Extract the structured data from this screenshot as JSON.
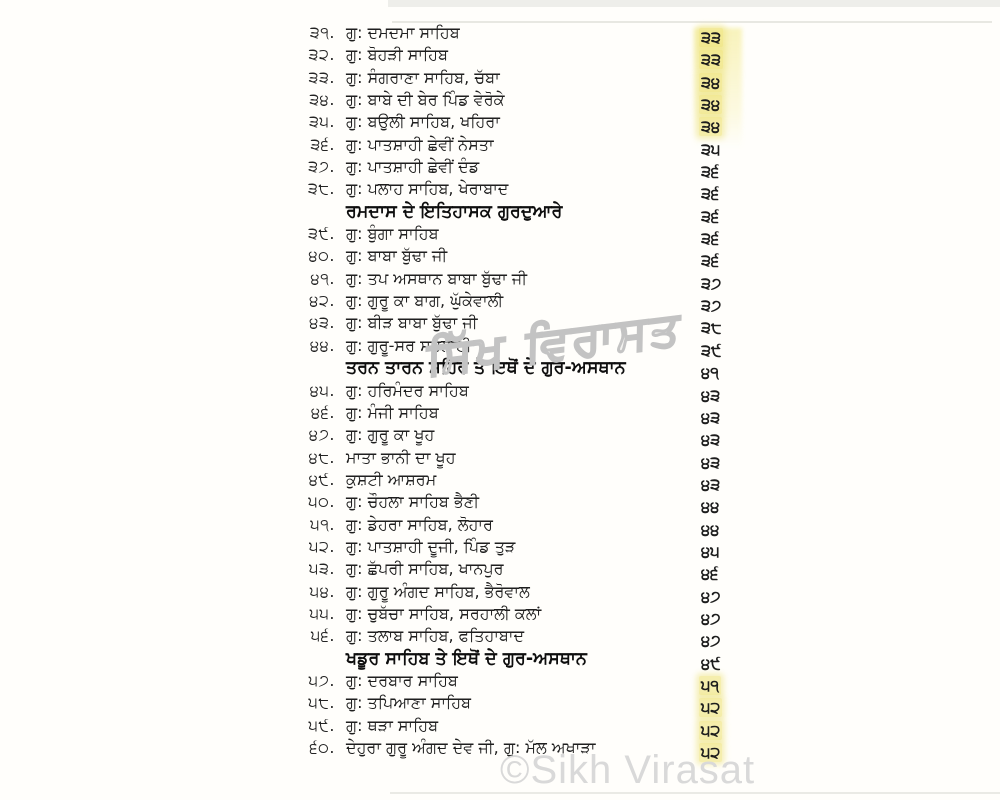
{
  "document": {
    "kind": "scanned-book-contents-page",
    "script": "Gurmukhi"
  },
  "colors": {
    "paper": "#fffefb",
    "text": "#1f1f1f",
    "heading_text": "#0e0e0e",
    "highlight_yellow": "#ece06e",
    "watermark_gray": "#c3c3c3",
    "bottom_watermark_gray": "#d9d9d9"
  },
  "watermarks": {
    "center": "ਸਿੱਖ ਵਿਰਾਸਤ",
    "bottom": "©Sikh Virasat"
  },
  "toc": {
    "rows": [
      {
        "type": "entry",
        "num": "੩੧.",
        "title": "ਗੁ: ਦਮਦਮਾ ਸਾਹਿਬ",
        "page": "੩੩",
        "hl": true
      },
      {
        "type": "entry",
        "num": "੩੨.",
        "title": "ਗੁ: ਬੋਹੜੀ ਸਾਹਿਬ",
        "page": "੩੩",
        "hl": true
      },
      {
        "type": "entry",
        "num": "੩੩.",
        "title": "ਗੁ: ਸੰਗਰਾਣਾ ਸਾਹਿਬ, ਚੱਬਾ",
        "page": "੩੪",
        "hl": true
      },
      {
        "type": "entry",
        "num": "੩੪.",
        "title": "ਗੁ: ਬਾਬੇ ਦੀ ਬੇਰ ਪਿੰਡ ਵੇਰੋਕੇ",
        "page": "੩੪",
        "hl": true
      },
      {
        "type": "entry",
        "num": "੩੫.",
        "title": "ਗੁ: ਬਉਲੀ ਸਾਹਿਬ, ਖਹਿਰਾ",
        "page": "੩੪",
        "hl": true
      },
      {
        "type": "entry",
        "num": "੩੬.",
        "title": "ਗੁ: ਪਾਤਸ਼ਾਹੀ ਛੇਵੀਂ ਨੇਸਤਾ",
        "page": "੩੫",
        "hl": false
      },
      {
        "type": "entry",
        "num": "੩੭.",
        "title": "ਗੁ: ਪਾਤਸ਼ਾਹੀ ਛੇਵੀਂ ਦੰਡ",
        "page": "੩੬",
        "hl": false
      },
      {
        "type": "entry",
        "num": "੩੮.",
        "title": "ਗੁ: ਪਲਾਹ ਸਾਹਿਬ, ਖੇਰਾਬਾਦ",
        "page": "੩੬",
        "hl": false
      },
      {
        "type": "heading",
        "num": "",
        "title": "ਰਮਦਾਸ ਦੇ ਇਤਿਹਾਸਕ ਗੁਰਦੁਆਰੇ",
        "page": "੩੬",
        "hl": false
      },
      {
        "type": "entry",
        "num": "੩੯.",
        "title": "ਗੁ: ਬੁੰਗਾ ਸਾਹਿਬ",
        "page": "੩੬",
        "hl": false
      },
      {
        "type": "entry",
        "num": "੪੦.",
        "title": "ਗੁ: ਬਾਬਾ ਬੁੱਢਾ ਜੀ",
        "page": "੩੬",
        "hl": false
      },
      {
        "type": "entry",
        "num": "੪੧.",
        "title": "ਗੁ: ਤਪ ਅਸਥਾਨ ਬਾਬਾ ਬੁੱਢਾ ਜੀ",
        "page": "੩੭",
        "hl": false
      },
      {
        "type": "entry",
        "num": "੪੨.",
        "title": "ਗੁ: ਗੁਰੂ ਕਾ ਬਾਗ, ਘੁੱਕੇਵਾਲੀ",
        "page": "੩੭",
        "hl": false
      },
      {
        "type": "entry",
        "num": "੪੩.",
        "title": "ਗੁ: ਬੀੜ ਬਾਬਾ ਬੁੱਢਾ ਜੀ",
        "page": "੩੮",
        "hl": false
      },
      {
        "type": "entry",
        "num": "੪੪.",
        "title": "ਗੁ: ਗੁਰੂ-ਸਰ ਸਤਲਾਣੀ",
        "page": "੩੯",
        "hl": false
      },
      {
        "type": "heading",
        "num": "",
        "title": "ਤਰਨ ਤਾਰਨ ਸ਼ਹਿਰ ਤੇ ਇਥੋਂ ਦੇ ਗੁਰ-ਅਸਥਾਨ",
        "page": "੪੧",
        "hl": false
      },
      {
        "type": "entry",
        "num": "੪੫.",
        "title": "ਗੁ: ਹਰਿਮੰਦਰ ਸਾਹਿਬ",
        "page": "੪੩",
        "hl": false
      },
      {
        "type": "entry",
        "num": "੪੬.",
        "title": "ਗੁ: ਮੰਜੀ ਸਾਹਿਬ",
        "page": "੪੩",
        "hl": false
      },
      {
        "type": "entry",
        "num": "੪੭.",
        "title": "ਗੁ: ਗੁਰੂ ਕਾ ਖੂਹ",
        "page": "੪੩",
        "hl": false
      },
      {
        "type": "entry",
        "num": "੪੮.",
        "title": "ਮਾਤਾ ਭਾਨੀ ਦਾ ਖੂਹ",
        "page": "੪੩",
        "hl": false
      },
      {
        "type": "entry",
        "num": "੪੯.",
        "title": "ਕੁਸ਼ਟੀ ਆਸ਼ਰਮ",
        "page": "੪੩",
        "hl": false
      },
      {
        "type": "entry",
        "num": "੫੦.",
        "title": "ਗੁ: ਚੌਹਲਾ ਸਾਹਿਬ ਭੈਣੀ",
        "page": "੪੪",
        "hl": false
      },
      {
        "type": "entry",
        "num": "੫੧.",
        "title": "ਗੁ: ਡੇਹਰਾ ਸਾਹਿਬ, ਲੋਹਾਰ",
        "page": "੪੪",
        "hl": false
      },
      {
        "type": "entry",
        "num": "੫੨.",
        "title": "ਗੁ: ਪਾਤਸ਼ਾਹੀ ਦੂਜੀ, ਪਿੰਡ ਤੁੜ",
        "page": "੪੫",
        "hl": false
      },
      {
        "type": "entry",
        "num": "੫੩.",
        "title": "ਗੁ: ਛੱਪਰੀ ਸਾਹਿਬ, ਖਾਨਪੁਰ",
        "page": "੪੬",
        "hl": false
      },
      {
        "type": "entry",
        "num": "੫੪.",
        "title": "ਗੁ: ਗੁਰੂ ਅੰਗਦ ਸਾਹਿਬ, ਭੈਰੋਵਾਲ",
        "page": "੪੭",
        "hl": false
      },
      {
        "type": "entry",
        "num": "੫੫.",
        "title": "ਗੁ: ਚੁਬੱਚਾ ਸਾਹਿਬ, ਸਰਹਾਲੀ ਕਲਾਂ",
        "page": "੪੭",
        "hl": false
      },
      {
        "type": "entry",
        "num": "੫੬.",
        "title": "ਗੁ: ਤਲਾਬ ਸਾਹਿਬ, ਫਤਿਹਾਬਾਦ",
        "page": "੪੭",
        "hl": false
      },
      {
        "type": "heading",
        "num": "",
        "title": "ਖਡੂਰ ਸਾਹਿਬ ਤੇ ਇਥੋਂ ਦੇ ਗੁਰ-ਅਸਥਾਨ",
        "page": "੪੯",
        "hl": false
      },
      {
        "type": "entry",
        "num": "੫੭.",
        "title": "ਗੁ: ਦਰਬਾਰ ਸਾਹਿਬ",
        "page": "੫੧",
        "hl": true
      },
      {
        "type": "entry",
        "num": "੫੮.",
        "title": "ਗੁ: ਤਪਿਆਣਾ ਸਾਹਿਬ",
        "page": "੫੨",
        "hl": true
      },
      {
        "type": "entry",
        "num": "੫੯.",
        "title": "ਗੁ: ਥੜਾ ਸਾਹਿਬ",
        "page": "੫੨",
        "hl": true
      },
      {
        "type": "entry",
        "num": "੬੦.",
        "title": "ਦੇਹੁਰਾ ਗੁਰੂ ਅੰਗਦ ਦੇਵ ਜੀ, ਗੁ: ਮੱਲ ਅਖਾੜਾ",
        "page": "੫੨",
        "hl": true
      }
    ]
  }
}
